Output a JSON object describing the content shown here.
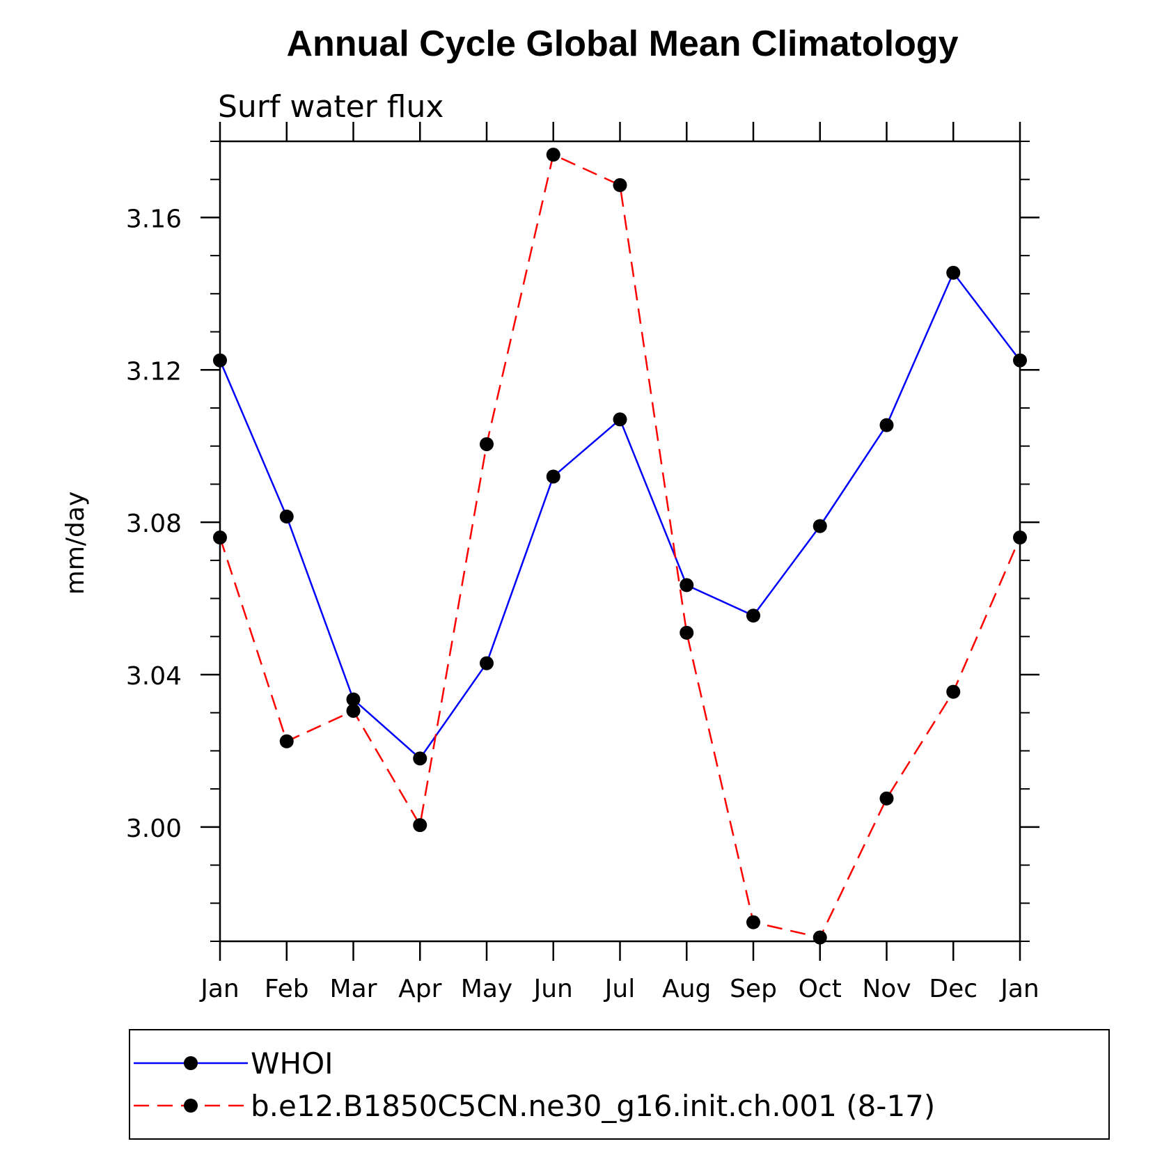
{
  "chart_data": {
    "type": "line",
    "title": "Annual Cycle Global Mean Climatology",
    "subtitle": "Surf water flux",
    "xlabel": "",
    "ylabel": "mm/day",
    "categories": [
      "Jan",
      "Feb",
      "Mar",
      "Apr",
      "May",
      "Jun",
      "Jul",
      "Aug",
      "Sep",
      "Oct",
      "Nov",
      "Dec",
      "Jan"
    ],
    "ylim": [
      2.97,
      3.18
    ],
    "yticks": [
      "3.00",
      "3.04",
      "3.08",
      "3.12",
      "3.16"
    ],
    "ytick_values": [
      3.0,
      3.04,
      3.08,
      3.12,
      3.16
    ],
    "minor_tick_step": 0.01,
    "grid": false,
    "legend_position": "bottom",
    "series": [
      {
        "name": "WHOI",
        "color": "#0000ff",
        "style": "solid",
        "marker": "circle",
        "values": [
          3.1225,
          3.0815,
          3.0335,
          3.018,
          3.043,
          3.092,
          3.107,
          3.0635,
          3.0555,
          3.079,
          3.1055,
          3.1455,
          3.1225
        ]
      },
      {
        "name": "b.e12.B1850C5CN.ne30_g16.init.ch.001 (8-17)",
        "color": "#ff0000",
        "style": "dashed",
        "marker": "circle",
        "values": [
          3.076,
          3.0225,
          3.0305,
          3.0005,
          3.1005,
          3.1765,
          3.1685,
          3.051,
          2.975,
          2.971,
          3.0075,
          3.0355,
          3.076
        ]
      }
    ]
  }
}
